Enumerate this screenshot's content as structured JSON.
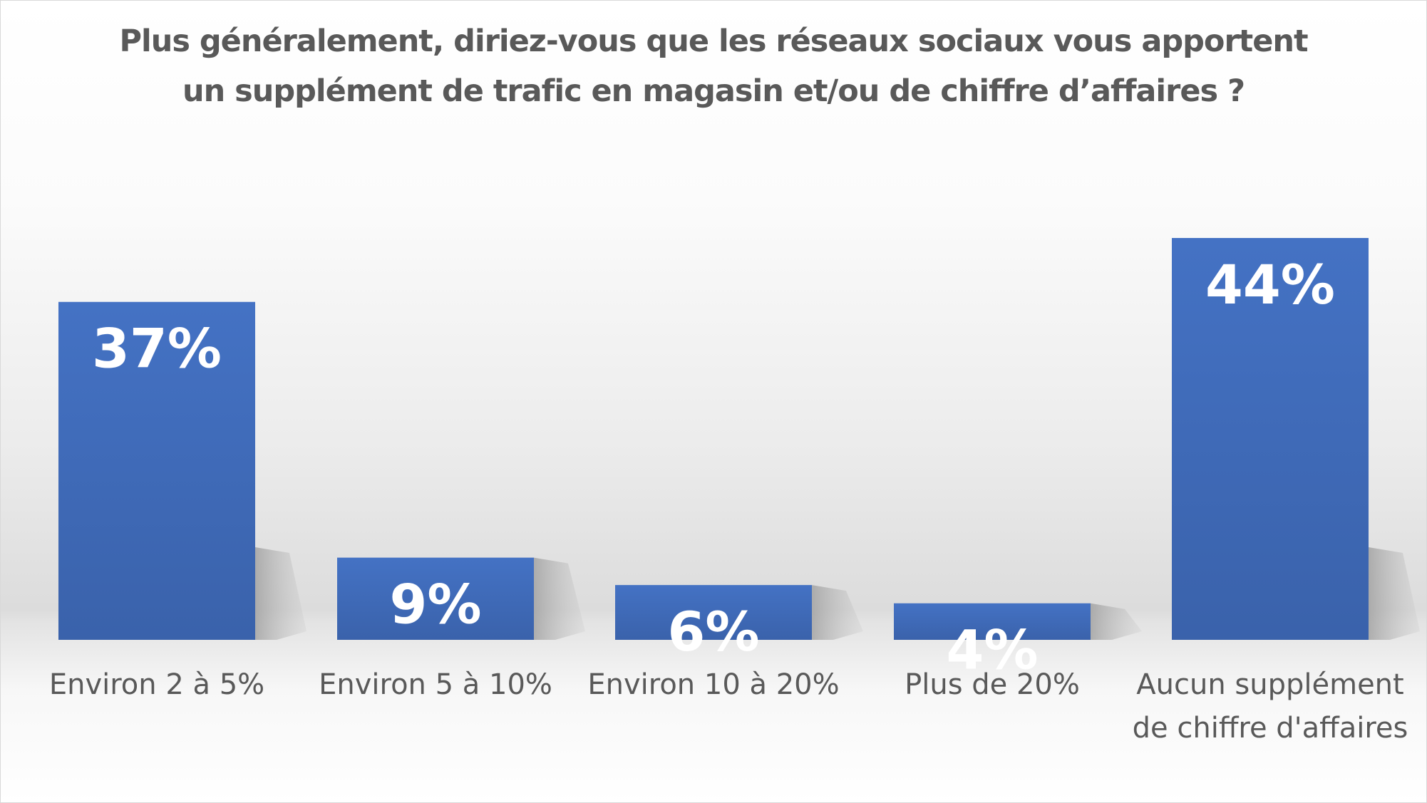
{
  "chart_data": {
    "type": "bar",
    "title": "Plus généralement, diriez-vous que les réseaux sociaux vous apportent un supplément de trafic en magasin et/ou de chiffre d’affaires ?",
    "categories": [
      "Environ 2 à 5%",
      "Environ 5 à 10%",
      "Environ 10 à 20%",
      "Plus de 20%",
      "Aucun supplément de chiffre d'affaires"
    ],
    "values": [
      37,
      9,
      6,
      4,
      44
    ],
    "data_labels": [
      "37%",
      "9%",
      "6%",
      "4%",
      "44%"
    ],
    "unit": "%",
    "xlabel": "",
    "ylabel": "",
    "ylim": [
      0,
      44
    ],
    "grid": false,
    "legend": "none",
    "colors": {
      "bar": "#4472c4",
      "bar_dark": "#3a62ab",
      "label": "#ffffff",
      "text": "#595959"
    }
  }
}
